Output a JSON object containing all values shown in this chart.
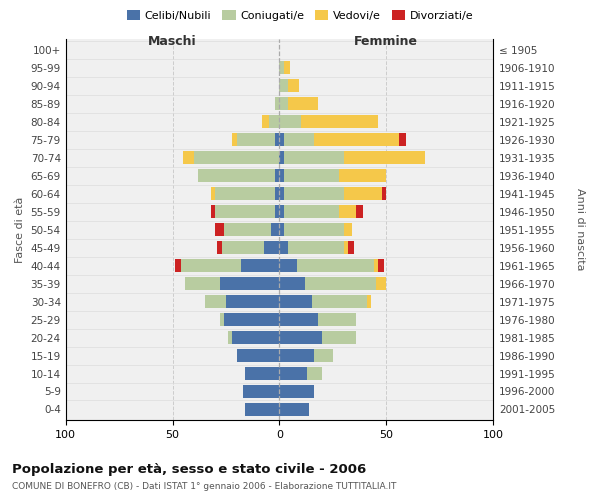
{
  "age_groups": [
    "100+",
    "95-99",
    "90-94",
    "85-89",
    "80-84",
    "75-79",
    "70-74",
    "65-69",
    "60-64",
    "55-59",
    "50-54",
    "45-49",
    "40-44",
    "35-39",
    "30-34",
    "25-29",
    "20-24",
    "15-19",
    "10-14",
    "5-9",
    "0-4"
  ],
  "birth_years": [
    "≤ 1905",
    "1906-1910",
    "1911-1915",
    "1916-1920",
    "1921-1925",
    "1926-1930",
    "1931-1935",
    "1936-1940",
    "1941-1945",
    "1946-1950",
    "1951-1955",
    "1956-1960",
    "1961-1965",
    "1966-1970",
    "1971-1975",
    "1976-1980",
    "1981-1985",
    "1986-1990",
    "1991-1995",
    "1996-2000",
    "2001-2005"
  ],
  "males_celibi": [
    0,
    0,
    0,
    0,
    0,
    2,
    0,
    2,
    2,
    2,
    4,
    7,
    18,
    28,
    25,
    26,
    22,
    20,
    16,
    17,
    16
  ],
  "males_coniugati": [
    0,
    0,
    0,
    2,
    5,
    18,
    40,
    36,
    28,
    28,
    22,
    20,
    28,
    16,
    10,
    2,
    2,
    0,
    0,
    0,
    0
  ],
  "males_vedovi": [
    0,
    0,
    0,
    0,
    3,
    2,
    5,
    0,
    2,
    0,
    0,
    0,
    0,
    0,
    0,
    0,
    0,
    0,
    0,
    0,
    0
  ],
  "males_divorziati": [
    0,
    0,
    0,
    0,
    0,
    0,
    0,
    0,
    0,
    2,
    4,
    2,
    3,
    0,
    0,
    0,
    0,
    0,
    0,
    0,
    0
  ],
  "females_nubili": [
    0,
    0,
    0,
    0,
    0,
    2,
    2,
    2,
    2,
    2,
    2,
    4,
    8,
    12,
    15,
    18,
    20,
    16,
    13,
    16,
    14
  ],
  "females_coniugate": [
    0,
    2,
    4,
    4,
    10,
    14,
    28,
    26,
    28,
    26,
    28,
    26,
    36,
    33,
    26,
    18,
    16,
    9,
    7,
    0,
    0
  ],
  "females_vedove": [
    0,
    3,
    5,
    14,
    36,
    40,
    38,
    22,
    18,
    8,
    4,
    2,
    2,
    5,
    2,
    0,
    0,
    0,
    0,
    0,
    0
  ],
  "females_divorziate": [
    0,
    0,
    0,
    0,
    0,
    3,
    0,
    0,
    2,
    3,
    0,
    3,
    3,
    0,
    0,
    0,
    0,
    0,
    0,
    0,
    0
  ],
  "color_celibi": "#4a72a8",
  "color_coniugati": "#b8cca0",
  "color_vedovi": "#f5c84a",
  "color_divorziati": "#cc2222",
  "bg_color": "#f0f0f0",
  "xlim": 100,
  "title": "Popolazione per età, sesso e stato civile - 2006",
  "subtitle": "COMUNE DI BONEFRO (CB) - Dati ISTAT 1° gennaio 2006 - Elaborazione TUTTITALIA.IT",
  "ylabel_left": "Fasce di età",
  "ylabel_right": "Anni di nascita",
  "xlabel_left": "Maschi",
  "xlabel_right": "Femmine"
}
